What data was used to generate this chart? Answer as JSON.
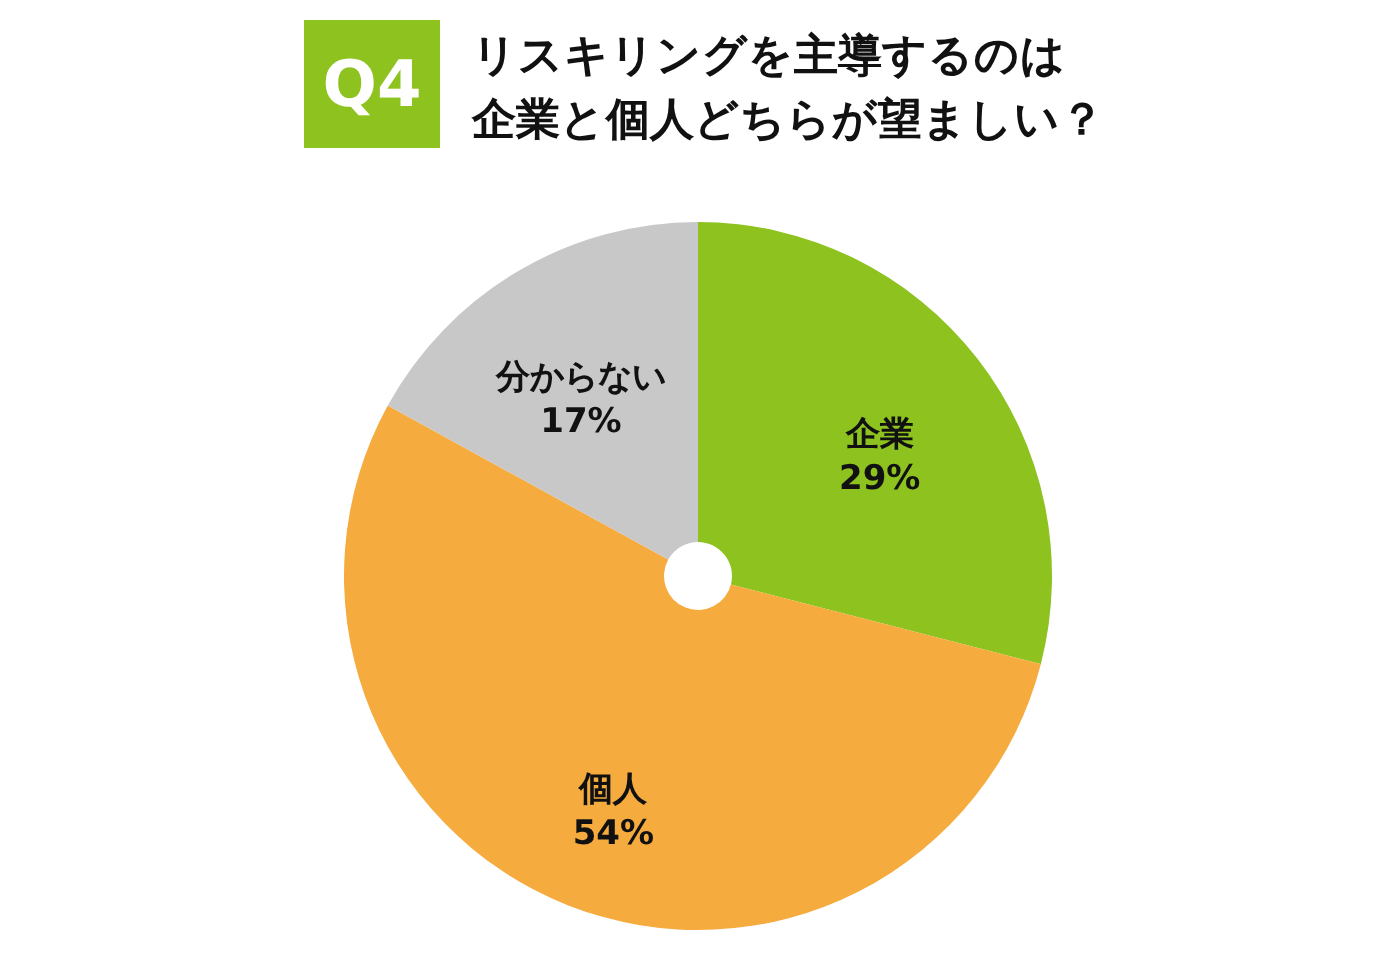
{
  "chart_data": {
    "type": "pie",
    "title": "リスキリングを主導するのは企業と個人どちらが望ましい？",
    "annotations": [
      "Q4"
    ],
    "categories": [
      "企業",
      "個人",
      "分からない"
    ],
    "values": [
      29,
      54,
      17
    ],
    "value_labels": [
      "29%",
      "54%",
      "17%"
    ],
    "colors": [
      "#8dc21f",
      "#f5ab3e",
      "#c8c8c8"
    ]
  }
}
